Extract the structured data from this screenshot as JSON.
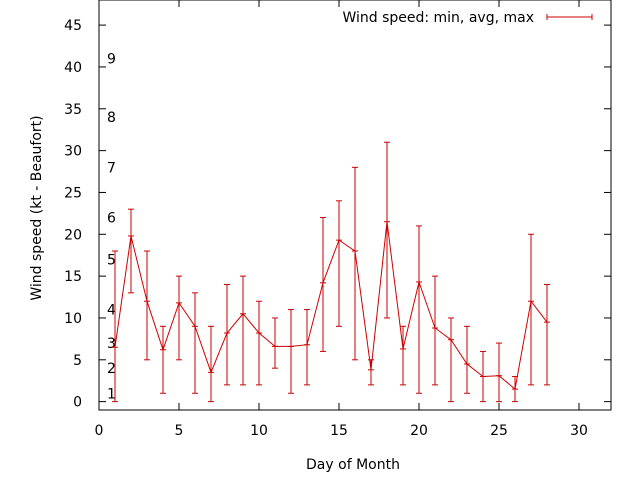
{
  "chart_data": {
    "type": "line",
    "xlabel": "Day of Month",
    "ylabel": "Wind speed (kt - Beaufort)",
    "xlim": [
      0,
      32
    ],
    "ylim": [
      -1,
      48
    ],
    "x_ticks": [
      "0",
      "5",
      "10",
      "15",
      "20",
      "25",
      "30"
    ],
    "y_ticks": [
      "0",
      "5",
      "10",
      "15",
      "20",
      "25",
      "30",
      "35",
      "40",
      "45"
    ],
    "grid": false,
    "legend_position": "top-right",
    "series_color": "#cc0000",
    "beaufort_labels": [
      {
        "label": "1",
        "kt": 1
      },
      {
        "label": "2",
        "kt": 4
      },
      {
        "label": "3",
        "kt": 7
      },
      {
        "label": "4",
        "kt": 11
      },
      {
        "label": "5",
        "kt": 17
      },
      {
        "label": "6",
        "kt": 22
      },
      {
        "label": "7",
        "kt": 28
      },
      {
        "label": "8",
        "kt": 34
      },
      {
        "label": "9",
        "kt": 41
      }
    ],
    "series": [
      {
        "name": "Wind speed: min, avg, max",
        "x": [
          1,
          2,
          3,
          4,
          5,
          6,
          7,
          8,
          9,
          10,
          11,
          12,
          13,
          14,
          15,
          16,
          17,
          18,
          19,
          20,
          21,
          22,
          23,
          24,
          25,
          26,
          27,
          28
        ],
        "avg": [
          6.5,
          19.8,
          12,
          6.2,
          11.8,
          9,
          3.5,
          8.2,
          10.5,
          8.2,
          6.6,
          6.6,
          6.8,
          14.2,
          19.3,
          18,
          3.8,
          21.5,
          6.3,
          14.3,
          8.8,
          7.4,
          4.5,
          3,
          3.1,
          1.5,
          12,
          9.5
        ],
        "min": [
          0,
          13,
          5,
          1,
          5,
          1,
          0,
          2,
          2,
          2,
          4,
          1,
          2,
          6,
          9,
          5,
          2,
          10,
          2,
          1,
          2,
          0,
          1,
          0,
          0,
          0,
          2,
          2
        ],
        "max": [
          18,
          23,
          18,
          9,
          15,
          13,
          9,
          14,
          15,
          12,
          10,
          11,
          11,
          22,
          24,
          28,
          5,
          31,
          9,
          21,
          15,
          10,
          9,
          6,
          7,
          3,
          20,
          14
        ]
      }
    ]
  }
}
